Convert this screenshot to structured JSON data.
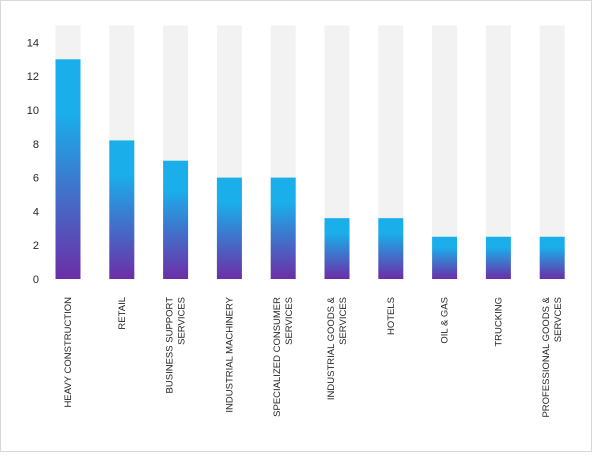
{
  "chart_data": {
    "type": "bar",
    "title": "",
    "xlabel": "",
    "ylabel": "",
    "ylim": [
      0,
      14
    ],
    "yticks": [
      0,
      2,
      4,
      6,
      8,
      10,
      12,
      14
    ],
    "grid": false,
    "legend": "none",
    "categories": [
      "HEAVY CONSTRUCTION",
      "RETAIL",
      "BUSINESS SUPPORT SERVICES",
      "INDUSTRIAL MACHINERY",
      "SPECIALIZED CONSUMER SERVICES",
      "INDUSTRIAL GOODS & SERVICES",
      "HOTELS",
      "OIL & GAS",
      "TRUCKING",
      "PROFESSIONAL GOODS & SERVCES"
    ],
    "category_lines": [
      [
        "HEAVY CONSTRUCTION"
      ],
      [
        "RETAIL"
      ],
      [
        "BUSINESS SUPPORT",
        "SERVICES"
      ],
      [
        "INDUSTRIAL MACHINERY"
      ],
      [
        "SPECIALIZED CONSUMER",
        "SERVICES"
      ],
      [
        "INDUSTRIAL GOODS &",
        "SERVICES"
      ],
      [
        "HOTELS"
      ],
      [
        "OIL & GAS"
      ],
      [
        "TRUCKING"
      ],
      [
        "PROFESSIONAL GOODS &",
        "SERVCES"
      ]
    ],
    "values": [
      13,
      8.2,
      7,
      6,
      6,
      3.6,
      3.6,
      2.5,
      2.5,
      2.5
    ],
    "background_bar_value": 15,
    "colors": {
      "gradient_top": "#1aaeea",
      "gradient_bottom": "#6c2ea7",
      "track": "#f2f2f2",
      "text": "#262626"
    }
  }
}
